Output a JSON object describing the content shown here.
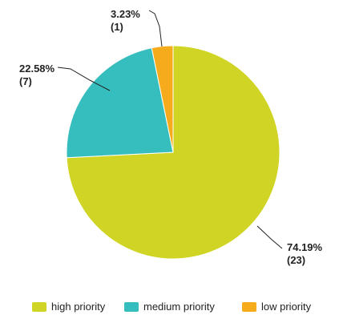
{
  "chart_data": {
    "type": "pie",
    "slices": [
      {
        "name": "high priority",
        "count": 23,
        "percent": 74.19,
        "percent_label": "74.19%",
        "count_label": "(23)",
        "color": "#d0d525"
      },
      {
        "name": "medium priority",
        "count": 7,
        "percent": 22.58,
        "percent_label": "22.58%",
        "count_label": "(7)",
        "color": "#36bdbd"
      },
      {
        "name": "low priority",
        "count": 1,
        "percent": 3.23,
        "percent_label": "3.23%",
        "count_label": "(1)",
        "color": "#f5ab1b"
      }
    ],
    "start": "12 o'clock",
    "direction": "clockwise",
    "legend_position": "bottom"
  }
}
